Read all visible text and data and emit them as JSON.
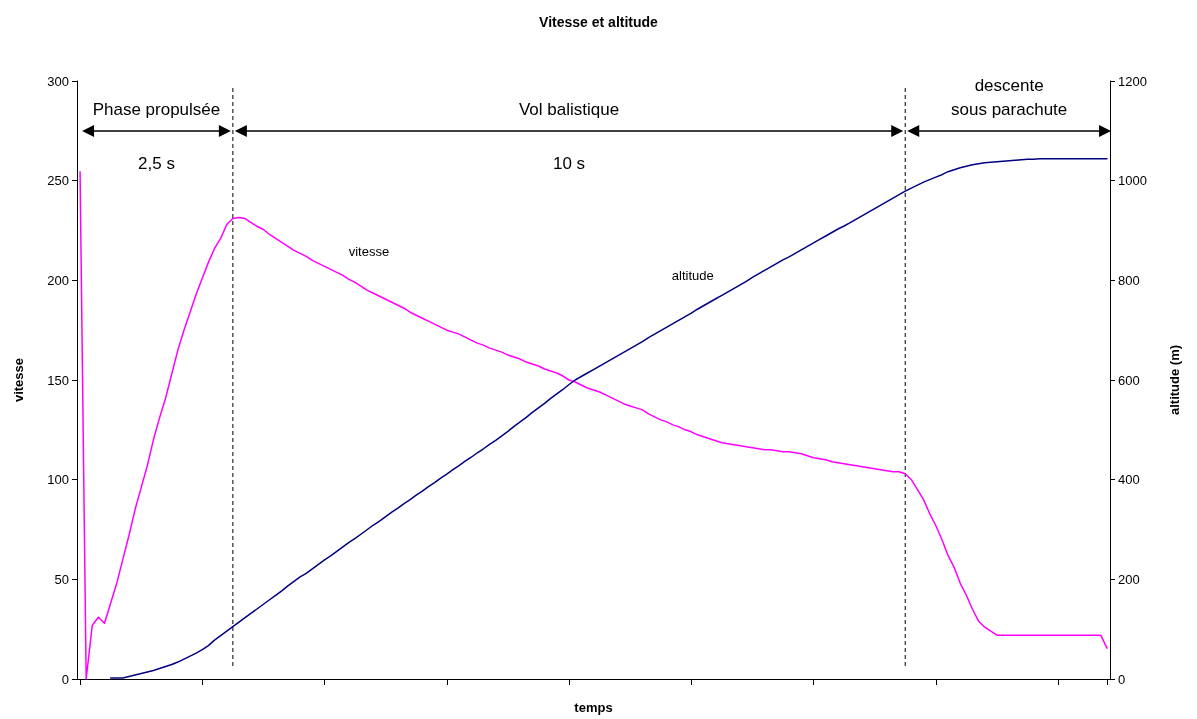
{
  "chart_data": {
    "type": "line",
    "title": "Vitesse et altitude",
    "xlabel": "temps",
    "ylabel": "vitesse",
    "y2label": "altitude (m)",
    "categories": [
      null,
      null,
      null,
      null,
      null,
      null,
      null,
      null,
      null,
      null,
      null,
      null,
      null,
      null,
      null,
      null,
      null,
      null,
      null,
      null,
      null,
      null,
      null,
      null,
      null,
      null,
      null,
      null,
      null,
      null,
      null,
      null,
      null,
      null,
      null,
      null,
      null,
      null,
      null,
      null,
      null,
      null,
      null,
      null,
      null,
      null,
      null,
      null,
      null,
      null,
      null,
      null,
      null,
      null,
      null,
      null,
      null,
      null,
      null,
      null,
      null,
      null,
      null,
      null,
      null,
      null,
      null,
      null,
      null,
      null,
      null,
      null,
      null,
      null,
      null,
      null,
      null,
      null,
      null,
      null,
      null,
      null,
      null,
      null,
      null,
      null,
      null,
      null,
      null,
      null,
      null,
      null,
      null,
      null,
      null,
      null,
      null,
      null,
      null,
      null,
      null,
      null,
      null,
      null,
      null,
      null,
      null,
      null,
      null,
      null,
      null,
      null,
      null,
      null,
      null,
      null,
      null,
      null,
      null,
      null,
      null,
      null,
      null,
      null,
      null,
      null,
      null,
      null,
      null,
      null,
      null,
      null,
      null,
      null,
      null,
      null,
      null,
      null,
      null,
      null,
      null,
      null,
      null,
      null,
      null,
      null,
      null,
      null,
      null,
      null,
      null,
      null,
      null,
      null,
      null,
      null,
      null,
      null,
      null,
      null,
      null,
      null,
      null,
      null,
      null,
      null,
      null,
      null,
      null
    ],
    "ylim": [
      0,
      300
    ],
    "yticks": [
      0,
      50,
      100,
      150,
      200,
      250,
      300
    ],
    "y2lim": [
      0,
      1200
    ],
    "y2ticks": [
      0,
      200,
      400,
      600,
      800,
      1000,
      1200
    ],
    "tick_labels": "y",
    "grid": false,
    "legend": false,
    "marker": "none",
    "line_style": "solid",
    "series": [
      {
        "name": "vitesse",
        "color": "#ff00ff",
        "values": [
          254.5,
          0,
          27,
          31,
          28,
          38,
          48,
          60,
          72,
          85,
          96,
          107,
          120,
          131,
          141,
          153,
          165,
          175,
          184,
          193,
          201,
          209,
          216,
          221,
          228,
          231,
          231.5,
          231,
          229,
          227,
          225.5,
          223,
          221,
          219,
          217,
          215,
          213.5,
          212,
          210,
          208.5,
          207,
          205.5,
          204,
          202.5,
          200.5,
          199,
          197,
          195,
          193.5,
          192,
          190.5,
          189,
          187.5,
          186,
          184,
          182.5,
          181,
          179.5,
          178,
          176.5,
          175,
          174,
          173,
          171.5,
          170,
          168.5,
          167.5,
          166,
          165,
          164,
          162.5,
          161.5,
          160.5,
          159,
          158,
          157,
          155.5,
          154.5,
          153.5,
          152,
          150,
          149,
          147.5,
          146,
          145,
          144,
          142.5,
          141,
          139.5,
          138,
          137,
          136,
          135,
          133,
          131.5,
          130,
          129,
          127.5,
          126.5,
          125,
          124,
          122.5,
          121.5,
          120.5,
          119.5,
          118.5,
          118,
          117.5,
          117,
          116.5,
          116,
          115.5,
          115,
          115,
          114.5,
          114,
          114,
          113.5,
          113,
          112,
          111,
          110.5,
          110,
          109,
          108.5,
          108,
          107.5,
          107,
          106.5,
          106,
          105.5,
          105,
          104.5,
          104,
          104,
          103,
          100,
          95,
          90,
          83,
          77,
          70,
          62,
          56,
          48,
          42,
          35,
          29,
          26,
          24,
          22,
          22,
          22,
          22,
          22,
          22,
          22,
          22,
          22,
          22,
          22,
          22,
          22,
          22,
          22,
          22,
          22,
          22,
          15.5
        ]
      },
      {
        "name": "altitude",
        "color": "#000080",
        "axis": "y2",
        "values": [
          null,
          null,
          null,
          null,
          null,
          2,
          2,
          2,
          5,
          8,
          11,
          14,
          17,
          21,
          25,
          29,
          34,
          40,
          46,
          52,
          59,
          67,
          78,
          87,
          96,
          105,
          114,
          123,
          132,
          141,
          150,
          159,
          168,
          177,
          187,
          196,
          205,
          212,
          221,
          230,
          239,
          247,
          256,
          265,
          274,
          282,
          291,
          300,
          309,
          317,
          326,
          335,
          343,
          352,
          360,
          369,
          377,
          386,
          394,
          403,
          411,
          420,
          428,
          437,
          445,
          454,
          462,
          471,
          479,
          488,
          497,
          507,
          516,
          525,
          535,
          544,
          553,
          563,
          572,
          581,
          591,
          600,
          607,
          614,
          621,
          628,
          635,
          642,
          649,
          656,
          663,
          670,
          677,
          685,
          692,
          699,
          706,
          713,
          720,
          727,
          734,
          742,
          749,
          756,
          763,
          770,
          777,
          784,
          791,
          798,
          806,
          813,
          820,
          827,
          834,
          841,
          847,
          854,
          861,
          868,
          875,
          882,
          889,
          896,
          903,
          909,
          916,
          923,
          930,
          937,
          944,
          951,
          958,
          965,
          972,
          979,
          985,
          991,
          997,
          1002,
          1007,
          1012,
          1018,
          1022,
          1026,
          1029,
          1032,
          1034,
          1036,
          1037,
          1038,
          1039,
          1040,
          1041,
          1042,
          1043,
          1043,
          1044,
          1044,
          1044,
          1044,
          1044,
          1044,
          1044,
          1044,
          1044,
          1044,
          1044,
          1044
        ]
      }
    ],
    "annotations": [
      "Phase propulsée",
      "2,5 s",
      "Vol balistique",
      "10 s",
      "descente\nsous parachute"
    ]
  }
}
